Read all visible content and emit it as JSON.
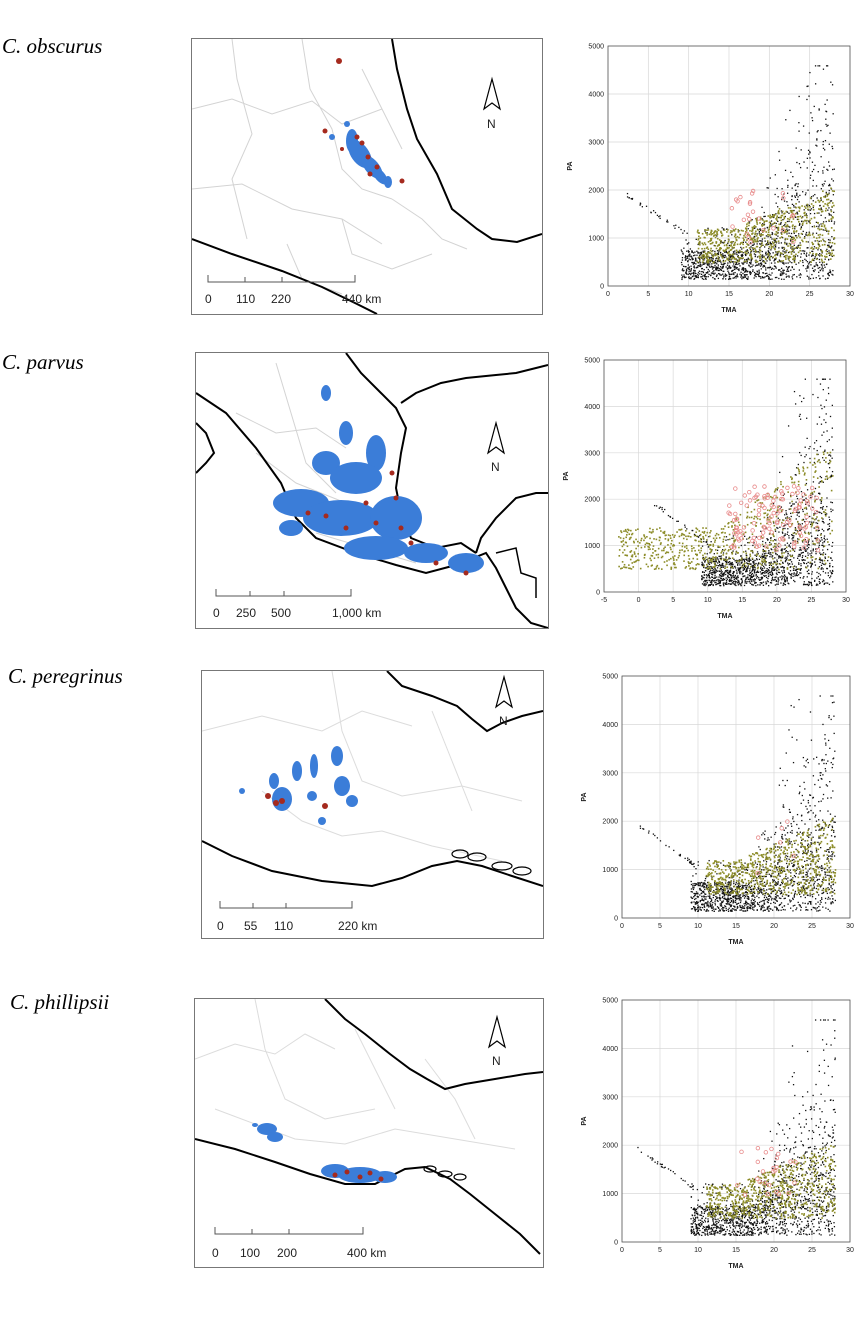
{
  "panels": [
    {
      "species": "C. obscurus",
      "scale_labels": [
        "0",
        "110",
        "220",
        "440 km"
      ],
      "north_label": "N"
    },
    {
      "species": "C. parvus",
      "scale_labels": [
        "0",
        "250",
        "500",
        "1,000 km"
      ],
      "north_label": "N"
    },
    {
      "species": "C. peregrinus",
      "scale_labels": [
        "0",
        "55",
        "110",
        "220 km"
      ],
      "north_label": "N"
    },
    {
      "species": "C. phillipsii",
      "scale_labels": [
        "0",
        "100",
        "200",
        "400 km"
      ],
      "north_label": "N"
    }
  ],
  "colors": {
    "niche_model": "#3b7dd8",
    "occurrence": "#a52a1e",
    "background_points": "#111111",
    "species_climate": "#8c8c28",
    "occurrence_climate": "#f4b8b8",
    "coastline": "#000000",
    "state_borders": "#cfcfcf"
  },
  "chart_data": [
    {
      "type": "scatter",
      "title": "",
      "xlabel": "TMA",
      "ylabel": "PA",
      "xlim": [
        0,
        30
      ],
      "ylim": [
        0,
        5000
      ],
      "xticks": [
        "0",
        "5",
        "10",
        "15",
        "20",
        "25",
        "30"
      ],
      "yticks": [
        "0",
        "1000",
        "2000",
        "3000",
        "4000",
        "5000"
      ],
      "grid": true
    },
    {
      "type": "scatter",
      "title": "",
      "xlabel": "TMA",
      "ylabel": "PA",
      "xlim": [
        -5,
        30
      ],
      "ylim": [
        0,
        5000
      ],
      "xticks": [
        "-5",
        "0",
        "5",
        "10",
        "15",
        "20",
        "25",
        "30"
      ],
      "yticks": [
        "0",
        "1000",
        "2000",
        "3000",
        "4000",
        "5000"
      ],
      "grid": true
    },
    {
      "type": "scatter",
      "title": "",
      "xlabel": "TMA",
      "ylabel": "PA",
      "xlim": [
        0,
        30
      ],
      "ylim": [
        0,
        5000
      ],
      "xticks": [
        "0",
        "5",
        "10",
        "15",
        "20",
        "25",
        "30"
      ],
      "yticks": [
        "0",
        "1000",
        "2000",
        "3000",
        "4000",
        "5000"
      ],
      "grid": true
    },
    {
      "type": "scatter",
      "title": "",
      "xlabel": "TMA",
      "ylabel": "PA",
      "xlim": [
        0,
        30
      ],
      "ylim": [
        0,
        5000
      ],
      "xticks": [
        "0",
        "5",
        "10",
        "15",
        "20",
        "25",
        "30"
      ],
      "yticks": [
        "0",
        "1000",
        "2000",
        "3000",
        "4000",
        "5000"
      ],
      "grid": true
    }
  ]
}
